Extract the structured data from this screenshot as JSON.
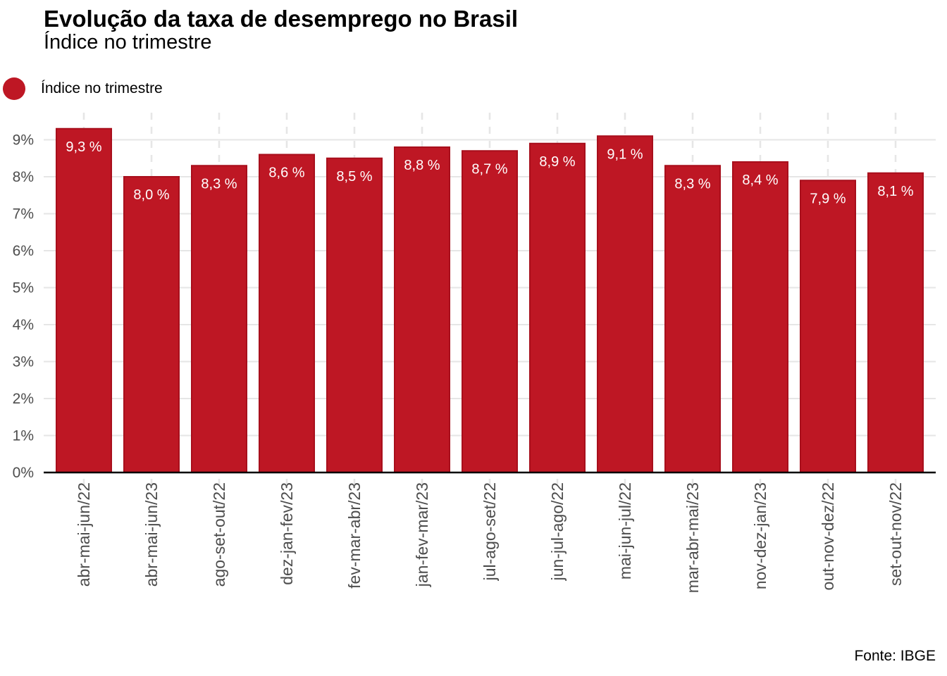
{
  "title": "Evolução da taxa de desemprego no Brasil",
  "subtitle": "Índice no trimestre",
  "legend": {
    "label": "Índice no trimestre",
    "color": "#be1724"
  },
  "source": "Fonte: IBGE",
  "colors": {
    "bar_fill": "#be1724",
    "bar_stroke": "#a80f1c",
    "grid": "#e6e6e6",
    "axis": "#000000"
  },
  "chart_data": {
    "type": "bar",
    "categories": [
      "abr-mai-jun/22",
      "abr-mai-jun/23",
      "ago-set-out/22",
      "dez-jan-fev/23",
      "fev-mar-abr/23",
      "jan-fev-mar/23",
      "jul-ago-set/22",
      "jun-jul-ago/22",
      "mai-jun-jul/22",
      "mar-abr-mai/23",
      "nov-dez-jan/23",
      "out-nov-dez/22",
      "set-out-nov/22"
    ],
    "values": [
      9.3,
      8.0,
      8.3,
      8.6,
      8.5,
      8.8,
      8.7,
      8.9,
      9.1,
      8.3,
      8.4,
      7.9,
      8.1
    ],
    "data_labels": [
      "9,3 %",
      "8,0 %",
      "8,3 %",
      "8,6 %",
      "8,5 %",
      "8,8 %",
      "8,7 %",
      "8,9 %",
      "9,1 %",
      "8,3 %",
      "8,4 %",
      "7,9 %",
      "8,1 %"
    ],
    "y_ticks": [
      0,
      1,
      2,
      3,
      4,
      5,
      6,
      7,
      8,
      9
    ],
    "y_tick_labels": [
      "0%",
      "1%",
      "2%",
      "3%",
      "4%",
      "5%",
      "6%",
      "7%",
      "8%",
      "9%"
    ],
    "ylim": [
      0,
      9.3
    ],
    "xlabel": "",
    "ylabel": "",
    "grid": true,
    "legend_position": "top-left"
  }
}
